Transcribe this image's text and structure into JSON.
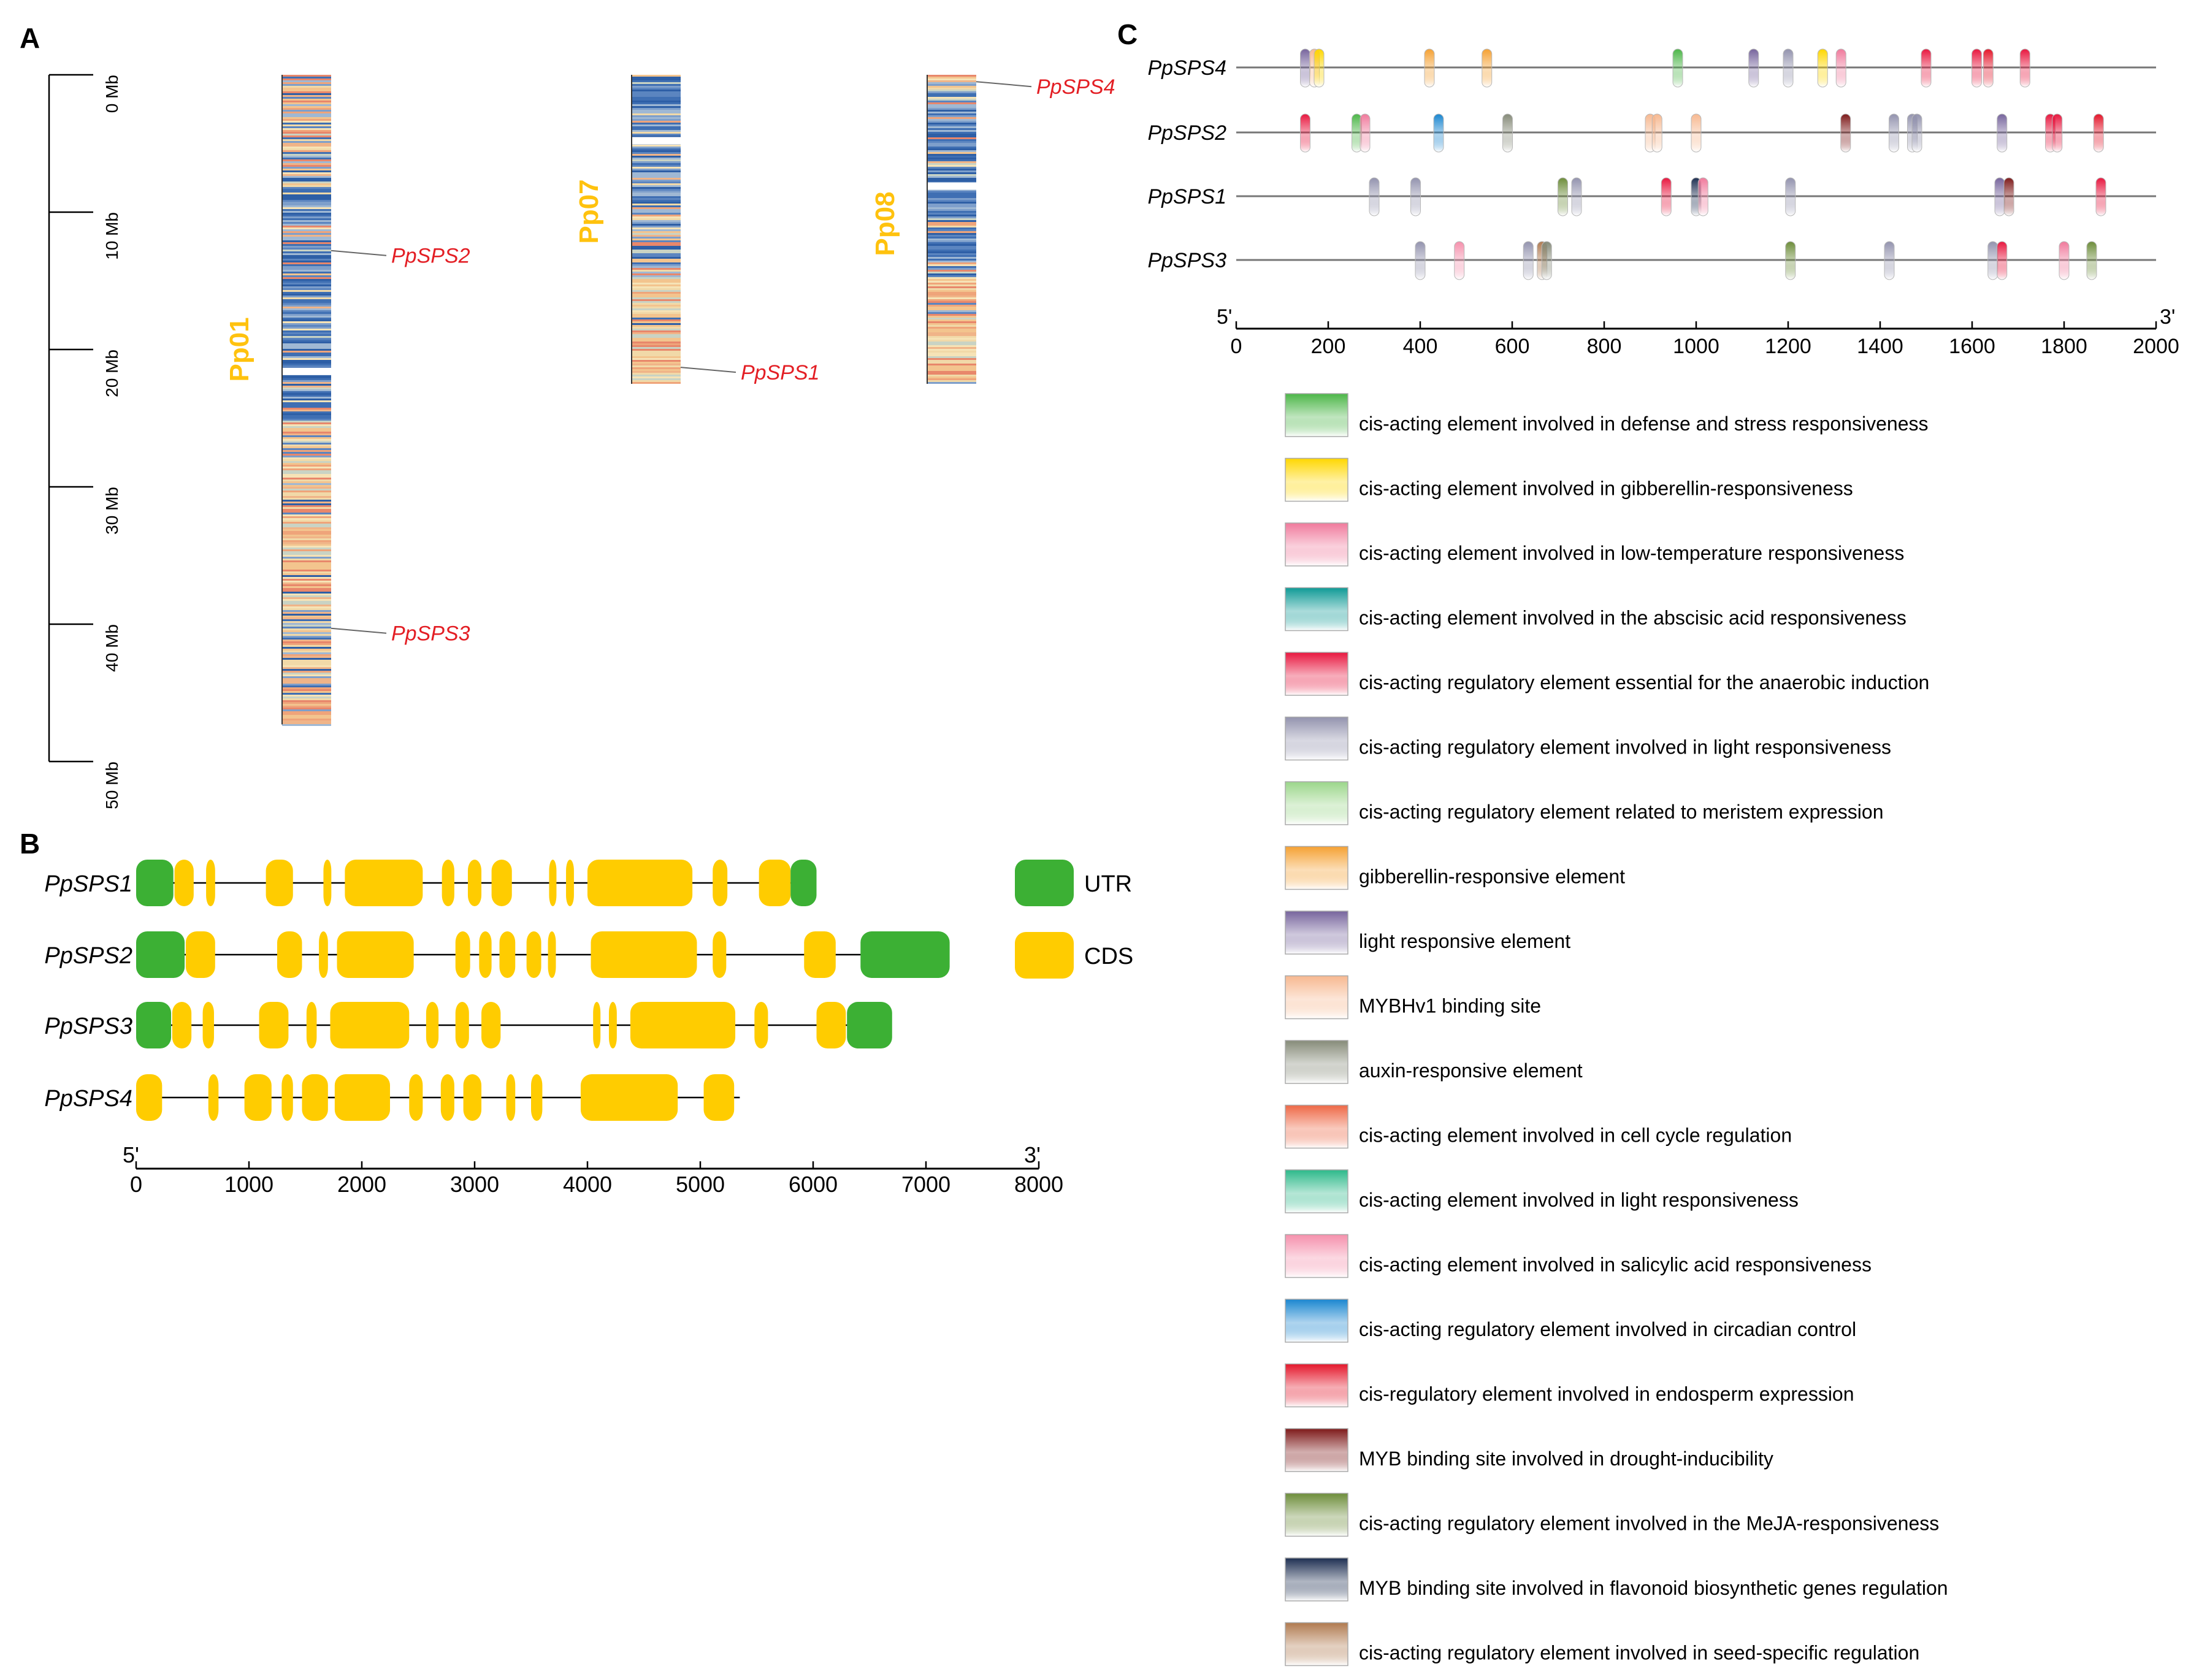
{
  "panelA": {
    "label": "A",
    "scale": {
      "max": 50,
      "ticks": [
        {
          "value": 0,
          "label": "0 Mb"
        },
        {
          "value": 10,
          "label": "10 Mb"
        },
        {
          "value": 20,
          "label": "20 Mb"
        },
        {
          "value": 30,
          "label": "30 Mb"
        },
        {
          "value": 40,
          "label": "40 Mb"
        },
        {
          "value": 50,
          "label": "50 Mb"
        }
      ]
    },
    "chromosomes": [
      {
        "name": "Pp01",
        "length_mb": 47.3,
        "gaps_mb": [
          21.6
        ],
        "genes": [
          {
            "name": "PpSPS2",
            "pos_mb": 12.8
          },
          {
            "name": "PpSPS3",
            "pos_mb": 40.3
          }
        ]
      },
      {
        "name": "Pp07",
        "length_mb": 22.5,
        "gaps_mb": [
          4.8
        ],
        "genes": [
          {
            "name": "PpSPS1",
            "pos_mb": 21.3
          }
        ]
      },
      {
        "name": "Pp08",
        "length_mb": 22.5,
        "gaps_mb": [
          8.1
        ],
        "genes": [
          {
            "name": "PpSPS4",
            "pos_mb": 0.5
          }
        ]
      }
    ],
    "colors": {
      "chrom_label": "#FFC20E",
      "gene_label": "#E31E24"
    }
  },
  "panelB": {
    "label": "B",
    "axis": {
      "min": 0,
      "max": 8000,
      "ticks": [
        0,
        1000,
        2000,
        3000,
        4000,
        5000,
        6000,
        7000,
        8000
      ],
      "five_prime": "5'",
      "three_prime": "3'"
    },
    "legend": [
      {
        "label": "UTR",
        "color": "#3CB034"
      },
      {
        "label": "CDS",
        "color": "#FFCC00"
      }
    ],
    "genes": [
      {
        "name": "PpSPS1",
        "end": 5870,
        "features": [
          [
            "UTR",
            0,
            330
          ],
          [
            "CDS",
            340,
            510
          ],
          [
            "CDS",
            620,
            700
          ],
          [
            "CDS",
            1150,
            1390
          ],
          [
            "CDS",
            1660,
            1730
          ],
          [
            "CDS",
            1850,
            2540
          ],
          [
            "CDS",
            2710,
            2820
          ],
          [
            "CDS",
            2940,
            3060
          ],
          [
            "CDS",
            3150,
            3330
          ],
          [
            "CDS",
            3660,
            3720
          ],
          [
            "CDS",
            3810,
            3880
          ],
          [
            "CDS",
            4000,
            4930
          ],
          [
            "CDS",
            5110,
            5240
          ],
          [
            "CDS",
            5520,
            5800
          ],
          [
            "UTR",
            5800,
            6030
          ]
        ]
      },
      {
        "name": "PpSPS2",
        "end": 7200,
        "features": [
          [
            "UTR",
            0,
            430
          ],
          [
            "CDS",
            440,
            700
          ],
          [
            "CDS",
            1250,
            1470
          ],
          [
            "CDS",
            1620,
            1700
          ],
          [
            "CDS",
            1780,
            2460
          ],
          [
            "CDS",
            2830,
            2960
          ],
          [
            "CDS",
            3040,
            3150
          ],
          [
            "CDS",
            3220,
            3360
          ],
          [
            "CDS",
            3460,
            3590
          ],
          [
            "CDS",
            3650,
            3720
          ],
          [
            "CDS",
            4030,
            4970
          ],
          [
            "CDS",
            5110,
            5230
          ],
          [
            "CDS",
            5920,
            6200
          ],
          [
            "UTR",
            6420,
            7210
          ]
        ]
      },
      {
        "name": "PpSPS3",
        "end": 6680,
        "features": [
          [
            "UTR",
            0,
            310
          ],
          [
            "CDS",
            320,
            490
          ],
          [
            "CDS",
            590,
            690
          ],
          [
            "CDS",
            1090,
            1350
          ],
          [
            "CDS",
            1510,
            1600
          ],
          [
            "CDS",
            1720,
            2420
          ],
          [
            "CDS",
            2570,
            2680
          ],
          [
            "CDS",
            2830,
            2950
          ],
          [
            "CDS",
            3060,
            3230
          ],
          [
            "CDS",
            4050,
            4110
          ],
          [
            "CDS",
            4190,
            4260
          ],
          [
            "CDS",
            4380,
            5310
          ],
          [
            "CDS",
            5480,
            5600
          ],
          [
            "CDS",
            6030,
            6290
          ],
          [
            "UTR",
            6300,
            6700
          ]
        ]
      },
      {
        "name": "PpSPS4",
        "end": 5350,
        "features": [
          [
            "CDS",
            0,
            230
          ],
          [
            "CDS",
            640,
            730
          ],
          [
            "CDS",
            960,
            1200
          ],
          [
            "CDS",
            1290,
            1390
          ],
          [
            "CDS",
            1470,
            1700
          ],
          [
            "CDS",
            1760,
            2250
          ],
          [
            "CDS",
            2420,
            2540
          ],
          [
            "CDS",
            2700,
            2820
          ],
          [
            "CDS",
            2900,
            3060
          ],
          [
            "CDS",
            3280,
            3360
          ],
          [
            "CDS",
            3500,
            3600
          ],
          [
            "CDS",
            3940,
            4800
          ],
          [
            "CDS",
            5030,
            5300
          ]
        ]
      }
    ]
  },
  "panelC": {
    "label": "C",
    "axis": {
      "min": 0,
      "max": 2000,
      "ticks": [
        0,
        200,
        400,
        600,
        800,
        1000,
        1200,
        1400,
        1600,
        1800,
        2000
      ],
      "five_prime": "5'",
      "three_prime": "3'"
    },
    "legend": [
      {
        "key": "defense",
        "label": "cis-acting element involved in defense and stress responsiveness",
        "color": "#4CB648"
      },
      {
        "key": "gib",
        "label": "cis-acting element involved in gibberellin-responsiveness",
        "color": "#FFD700"
      },
      {
        "key": "lowtemp",
        "label": "cis-acting element involved in low-temperature responsiveness",
        "color": "#F07A9C"
      },
      {
        "key": "aba",
        "label": "cis-acting element involved in the abscisic acid responsiveness",
        "color": "#0F9A96"
      },
      {
        "key": "anaer",
        "label": "cis-acting regulatory element essential for the anaerobic induction",
        "color": "#E8173F"
      },
      {
        "key": "light",
        "label": "cis-acting regulatory element involved in light responsiveness",
        "color": "#9393AE"
      },
      {
        "key": "meri",
        "label": "cis-acting regulatory element related to meristem expression",
        "color": "#9BD68A"
      },
      {
        "key": "gre",
        "label": "gibberellin-responsive element",
        "color": "#F5A133"
      },
      {
        "key": "lre",
        "label": "light responsive element",
        "color": "#77659D"
      },
      {
        "key": "mybhv1",
        "label": "MYBHv1 binding site",
        "color": "#F7B890"
      },
      {
        "key": "auxin",
        "label": "auxin-responsive element",
        "color": "#868B79"
      },
      {
        "key": "cellcycle",
        "label": "cis-acting element involved in cell cycle regulation",
        "color": "#EE6846"
      },
      {
        "key": "lightresp",
        "label": "cis-acting element involved in light responsiveness",
        "color": "#2DB98A"
      },
      {
        "key": "sa",
        "label": "cis-acting element involved in salicylic acid responsiveness",
        "color": "#F590AC"
      },
      {
        "key": "circ",
        "label": "cis-acting regulatory element involved in circadian control",
        "color": "#1A86D0"
      },
      {
        "key": "endo",
        "label": "cis-regulatory element involved in endosperm expression",
        "color": "#E4162A"
      },
      {
        "key": "drought",
        "label": "MYB binding site involved in drought-inducibility",
        "color": "#7E1A1A"
      },
      {
        "key": "meja",
        "label": "cis-acting regulatory element involved in the MeJA-responsiveness",
        "color": "#6D8D3A"
      },
      {
        "key": "flav",
        "label": "MYB binding site involved in flavonoid biosynthetic genes regulation",
        "color": "#1E2F52"
      },
      {
        "key": "seed",
        "label": "cis-acting regulatory element involved in seed-specific regulation",
        "color": "#B07A4F"
      }
    ],
    "promoters": [
      {
        "name": "PpSPS4",
        "elements": [
          [
            "lre",
            150
          ],
          [
            "mybhv1",
            170
          ],
          [
            "gib",
            180
          ],
          [
            "gre",
            420
          ],
          [
            "gre",
            545
          ],
          [
            "defense",
            960
          ],
          [
            "lre",
            1125
          ],
          [
            "light",
            1200
          ],
          [
            "gib",
            1275
          ],
          [
            "lowtemp",
            1315
          ],
          [
            "anaer",
            1500
          ],
          [
            "anaer",
            1610
          ],
          [
            "endo",
            1635
          ],
          [
            "anaer",
            1715
          ]
        ]
      },
      {
        "name": "PpSPS2",
        "elements": [
          [
            "anaer",
            150
          ],
          [
            "defense",
            262
          ],
          [
            "lowtemp",
            280
          ],
          [
            "circ",
            440
          ],
          [
            "auxin",
            590
          ],
          [
            "mybhv1",
            900
          ],
          [
            "mybhv1",
            915
          ],
          [
            "mybhv1",
            1000
          ],
          [
            "drought",
            1325
          ],
          [
            "light",
            1430
          ],
          [
            "light",
            1470
          ],
          [
            "light",
            1480
          ],
          [
            "lre",
            1665
          ],
          [
            "anaer",
            1770
          ],
          [
            "anaer",
            1785
          ],
          [
            "endo",
            1875
          ]
        ]
      },
      {
        "name": "PpSPS1",
        "elements": [
          [
            "light",
            300
          ],
          [
            "light",
            390
          ],
          [
            "meja",
            710
          ],
          [
            "light",
            740
          ],
          [
            "anaer",
            935
          ],
          [
            "flav",
            1000
          ],
          [
            "lowtemp",
            1015
          ],
          [
            "light",
            1205
          ],
          [
            "lre",
            1660
          ],
          [
            "drought",
            1680
          ],
          [
            "anaer",
            1880
          ]
        ]
      },
      {
        "name": "PpSPS3",
        "elements": [
          [
            "light",
            400
          ],
          [
            "sa",
            485
          ],
          [
            "light",
            635
          ],
          [
            "seed",
            665
          ],
          [
            "auxin",
            675
          ],
          [
            "meja",
            1205
          ],
          [
            "light",
            1420
          ],
          [
            "light",
            1645
          ],
          [
            "anaer",
            1665
          ],
          [
            "lowtemp",
            1800
          ],
          [
            "meja",
            1860
          ]
        ]
      }
    ]
  }
}
